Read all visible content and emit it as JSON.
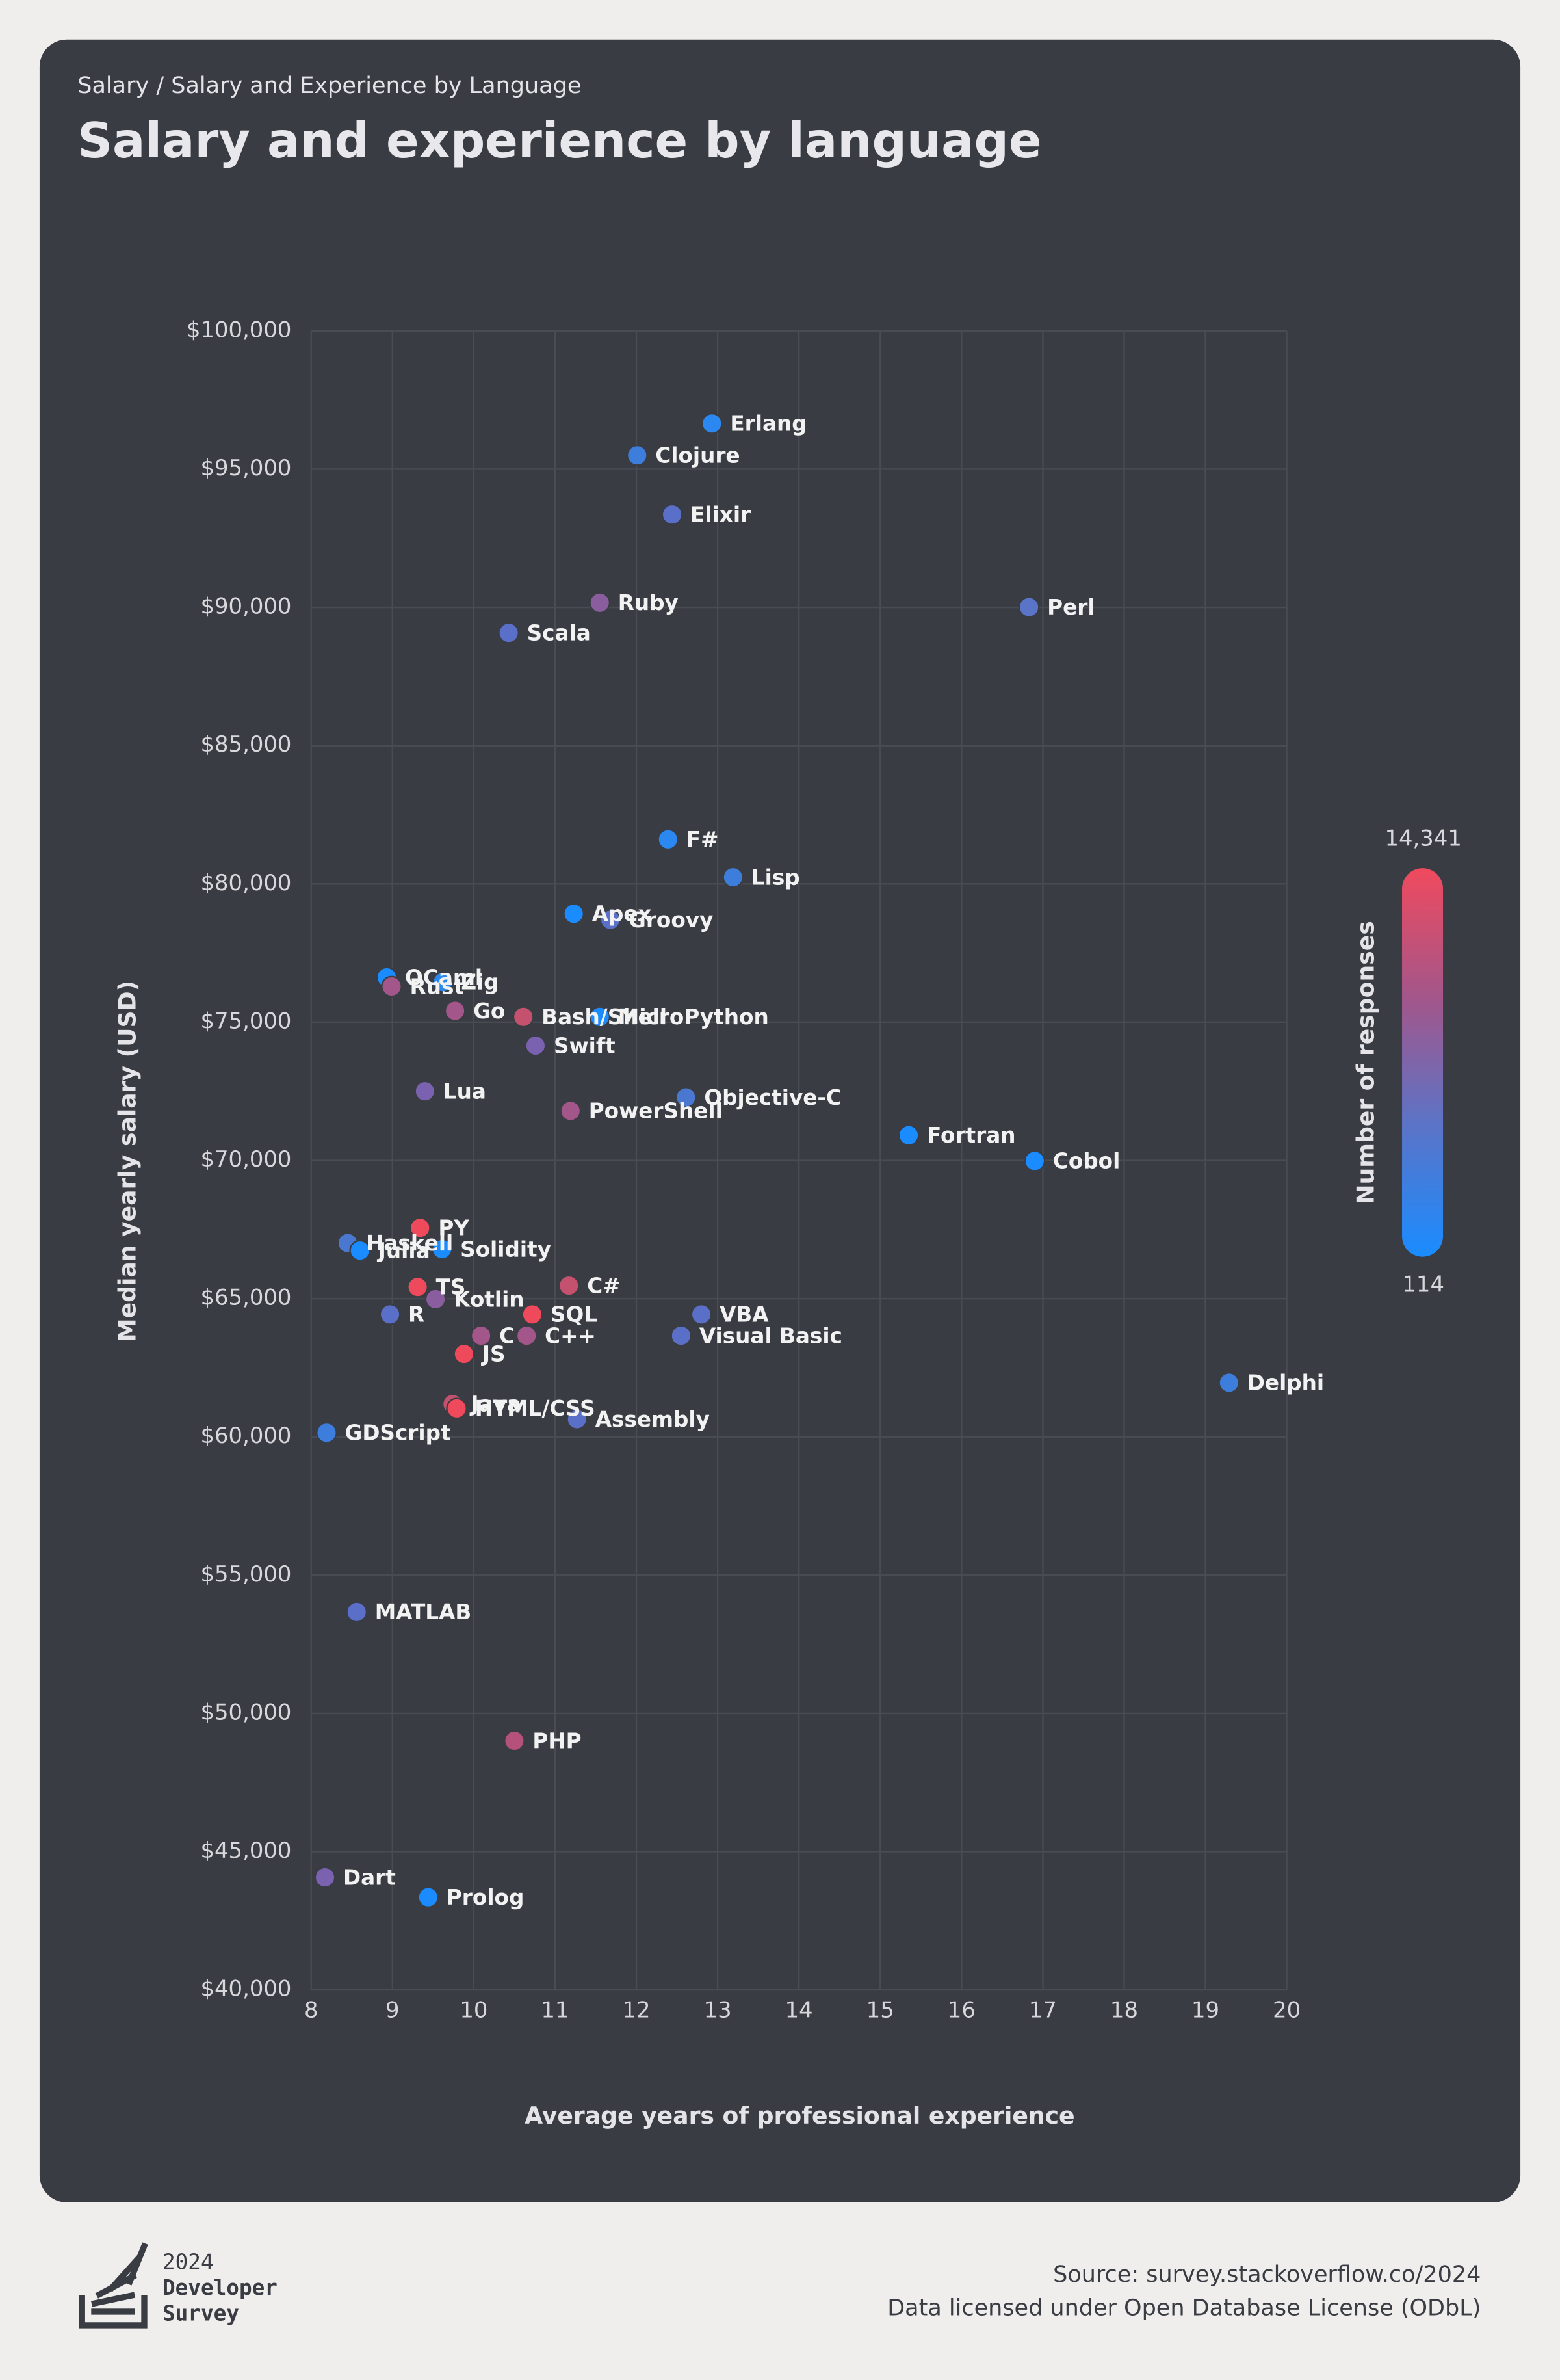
{
  "header": {
    "breadcrumb": "Salary / Salary and Experience by Language"
  },
  "chart_data": {
    "type": "scatter",
    "title": "Salary and experience by language",
    "x_label": "Average years of professional experience",
    "y_label": "Median yearly salary (USD)",
    "xlim": [
      8,
      20
    ],
    "xticks": [
      8,
      9,
      10,
      11,
      12,
      13,
      14,
      15,
      16,
      17,
      18,
      19,
      20
    ],
    "ylim": [
      40000,
      100000
    ],
    "yticks": [
      {
        "value": 40000,
        "label": "$40,000"
      },
      {
        "value": 45000,
        "label": "$45,000"
      },
      {
        "value": 50000,
        "label": "$50,000"
      },
      {
        "value": 55000,
        "label": "$55,000"
      },
      {
        "value": 60000,
        "label": "$60,000"
      },
      {
        "value": 65000,
        "label": "$65,000"
      },
      {
        "value": 70000,
        "label": "$70,000"
      },
      {
        "value": 75000,
        "label": "$75,000"
      },
      {
        "value": 80000,
        "label": "$80,000"
      },
      {
        "value": 85000,
        "label": "$85,000"
      },
      {
        "value": 90000,
        "label": "$90,000"
      },
      {
        "value": 95000,
        "label": "$95,000"
      },
      {
        "value": 100000,
        "label": "$100,000"
      }
    ],
    "grid": true,
    "points": [
      {
        "label": "Erlang",
        "x": 12.93,
        "y": 96650,
        "color": "#2a88f0"
      },
      {
        "label": "Clojure",
        "x": 12.01,
        "y": 95500,
        "color": "#3d7ddb"
      },
      {
        "label": "Elixir",
        "x": 12.44,
        "y": 93360,
        "color": "#5a6fc8"
      },
      {
        "label": "Ruby",
        "x": 11.55,
        "y": 90170,
        "color": "#8a5e9e"
      },
      {
        "label": "Perl",
        "x": 16.83,
        "y": 90010,
        "color": "#5a74c8"
      },
      {
        "label": "Scala",
        "x": 10.43,
        "y": 89080,
        "color": "#5a6fc8"
      },
      {
        "label": "F#",
        "x": 12.39,
        "y": 81610,
        "color": "#2a88f0"
      },
      {
        "label": "Lisp",
        "x": 13.19,
        "y": 80240,
        "color": "#3d7ddb"
      },
      {
        "label": "Apex",
        "x": 11.23,
        "y": 78920,
        "color": "#1a8cff"
      },
      {
        "label": "Groovy",
        "x": 11.68,
        "y": 78700,
        "color": "#5a6fc8"
      },
      {
        "label": "OCaml",
        "x": 8.93,
        "y": 76620,
        "color": "#1a8cff"
      },
      {
        "label": "Zig",
        "x": 9.62,
        "y": 76450,
        "color": "#2a88f0"
      },
      {
        "label": "Rust",
        "x": 8.99,
        "y": 76290,
        "color": "#a3568a"
      },
      {
        "label": "Go",
        "x": 9.77,
        "y": 75410,
        "color": "#a3568a"
      },
      {
        "label": "Bash/Shell",
        "x": 10.61,
        "y": 75190,
        "color": "#c4526f"
      },
      {
        "label": "MicroPython",
        "x": 11.55,
        "y": 75190,
        "color": "#1a8cff"
      },
      {
        "label": "Swift",
        "x": 10.76,
        "y": 74150,
        "color": "#7a62b0"
      },
      {
        "label": "Lua",
        "x": 9.4,
        "y": 72500,
        "color": "#7a62b0"
      },
      {
        "label": "Objective-C",
        "x": 12.61,
        "y": 72280,
        "color": "#4a78d0"
      },
      {
        "label": "PowerShell",
        "x": 11.19,
        "y": 71790,
        "color": "#a3568a"
      },
      {
        "label": "Fortran",
        "x": 15.35,
        "y": 70910,
        "color": "#1a8cff"
      },
      {
        "label": "Cobol",
        "x": 16.9,
        "y": 69980,
        "color": "#1a8cff"
      },
      {
        "label": "PY",
        "x": 9.34,
        "y": 67560,
        "color": "#ef4a5c"
      },
      {
        "label": "Haskell",
        "x": 8.45,
        "y": 67010,
        "color": "#4a78d0"
      },
      {
        "label": "Julia",
        "x": 8.6,
        "y": 66740,
        "color": "#1a8cff"
      },
      {
        "label": "Solidity",
        "x": 9.61,
        "y": 66790,
        "color": "#1a8cff"
      },
      {
        "label": "C#",
        "x": 11.17,
        "y": 65470,
        "color": "#c4526f"
      },
      {
        "label": "TS",
        "x": 9.31,
        "y": 65420,
        "color": "#ef4a5c"
      },
      {
        "label": "Kotlin",
        "x": 9.53,
        "y": 64980,
        "color": "#8a5e9e"
      },
      {
        "label": "R",
        "x": 8.97,
        "y": 64430,
        "color": "#5a6fc8"
      },
      {
        "label": "SQL",
        "x": 10.72,
        "y": 64430,
        "color": "#ef4a5c"
      },
      {
        "label": "VBA",
        "x": 12.8,
        "y": 64430,
        "color": "#5a6fc8"
      },
      {
        "label": "C",
        "x": 10.09,
        "y": 63660,
        "color": "#a3568a"
      },
      {
        "label": "C++",
        "x": 10.65,
        "y": 63660,
        "color": "#a3568a"
      },
      {
        "label": "Visual Basic",
        "x": 12.55,
        "y": 63660,
        "color": "#5a6fc8"
      },
      {
        "label": "JS",
        "x": 9.88,
        "y": 63000,
        "color": "#ef4a5c"
      },
      {
        "label": "Delphi",
        "x": 19.29,
        "y": 61960,
        "color": "#3d7ddb"
      },
      {
        "label": "Java",
        "x": 9.74,
        "y": 61190,
        "color": "#c4526f"
      },
      {
        "label": "HTML/CSS",
        "x": 9.79,
        "y": 61030,
        "color": "#ef4a5c"
      },
      {
        "label": "Assembly",
        "x": 11.27,
        "y": 60640,
        "color": "#5a6fc8"
      },
      {
        "label": "GDScript",
        "x": 8.19,
        "y": 60150,
        "color": "#3d7ddb"
      },
      {
        "label": "MATLAB",
        "x": 8.56,
        "y": 53670,
        "color": "#5a6fc8"
      },
      {
        "label": "PHP",
        "x": 10.5,
        "y": 49010,
        "color": "#b4527c"
      },
      {
        "label": "Dart",
        "x": 8.17,
        "y": 44070,
        "color": "#7a62b0"
      },
      {
        "label": "Prolog",
        "x": 9.44,
        "y": 43350,
        "color": "#1a8cff"
      }
    ],
    "colorbar": {
      "title": "Number of responses",
      "colors": [
        "#1a8cff",
        "#5a74c8",
        "#a3568a",
        "#f04a5e"
      ],
      "ticks": [
        {
          "value": 14341,
          "label": "14,341"
        },
        {
          "value": 114,
          "label": "114"
        }
      ]
    }
  },
  "footer": {
    "logo_lines": [
      "2024",
      "Developer",
      "Survey"
    ],
    "source": "Source: survey.stackoverflow.co/2024",
    "license": "Data licensed under Open Database License (ODbL)"
  }
}
